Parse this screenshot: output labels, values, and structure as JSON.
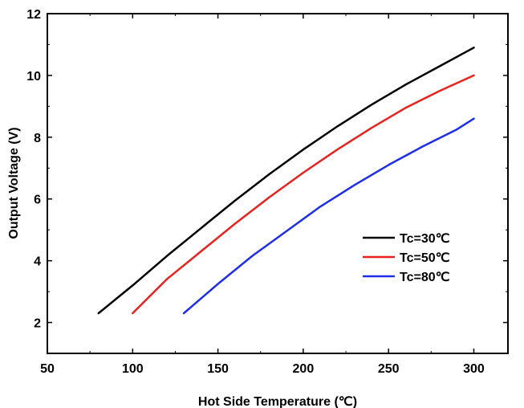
{
  "chart_data": {
    "type": "line",
    "title": "",
    "xlabel": "Hot Side Temperature (℃)",
    "ylabel": "Output Voltage (V)",
    "xlim": [
      50,
      320
    ],
    "ylim": [
      1,
      12
    ],
    "xticks": [
      50,
      100,
      150,
      200,
      250,
      300
    ],
    "yticks": [
      2,
      4,
      6,
      8,
      10,
      12
    ],
    "grid": false,
    "legend_position": "center-right",
    "series": [
      {
        "name": "Tc=30℃",
        "color": "#000000",
        "x": [
          80,
          100,
          120,
          140,
          160,
          180,
          200,
          220,
          240,
          260,
          280,
          300
        ],
        "y": [
          2.3,
          3.2,
          4.15,
          5.05,
          5.95,
          6.8,
          7.6,
          8.35,
          9.05,
          9.7,
          10.3,
          10.9
        ]
      },
      {
        "name": "Tc=50℃",
        "color": "#e8231f",
        "x": [
          100,
          120,
          140,
          160,
          180,
          200,
          220,
          240,
          260,
          280,
          300
        ],
        "y": [
          2.3,
          3.4,
          4.3,
          5.2,
          6.05,
          6.85,
          7.6,
          8.3,
          8.95,
          9.5,
          10.0
        ]
      },
      {
        "name": "Tc=80℃",
        "color": "#1f2ee8",
        "x": [
          130,
          150,
          170,
          190,
          210,
          230,
          250,
          270,
          290,
          300
        ],
        "y": [
          2.3,
          3.25,
          4.15,
          4.95,
          5.75,
          6.45,
          7.1,
          7.7,
          8.25,
          8.6
        ]
      }
    ]
  }
}
